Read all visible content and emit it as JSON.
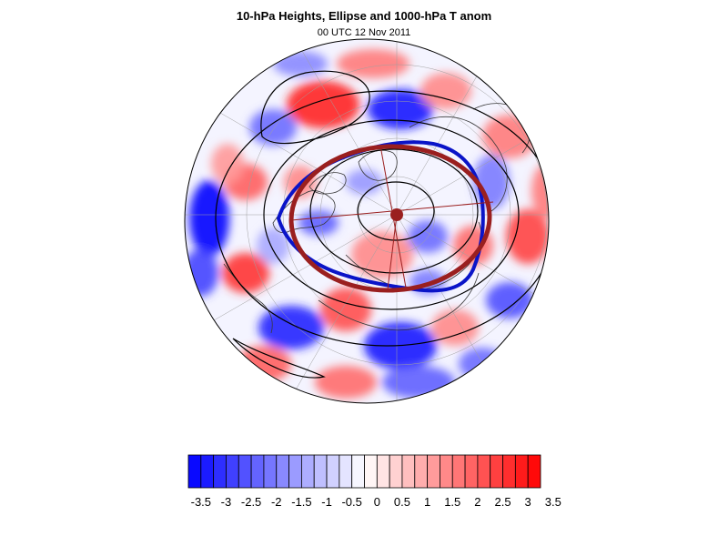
{
  "header": {
    "title": "10-hPa Heights, Ellipse and 1000-hPa T anom",
    "subtitle": "00 UTC 12 Nov 2011"
  },
  "colors": {
    "cold": "#0000ff",
    "warm": "#ff0000",
    "ellipse": "#9a1f1f",
    "polar_vortex_edge": "#0a14c8",
    "contour": "#000000",
    "coast": "#333333",
    "grid": "#9a9a9a"
  },
  "colorbar": {
    "labels": [
      "-3.5",
      "-3",
      "-2.5",
      "-2",
      "-1.5",
      "-1",
      "-0.5",
      "0",
      "0.5",
      "1",
      "1.5",
      "2",
      "2.5",
      "3",
      "3.5"
    ],
    "levels": [
      -3.5,
      -3.25,
      -3,
      -2.75,
      -2.5,
      -2.25,
      -2,
      -1.75,
      -1.5,
      -1.25,
      -1,
      -0.75,
      -0.5,
      -0.25,
      0,
      0.25,
      0.5,
      0.75,
      1,
      1.25,
      1.5,
      1.75,
      2,
      2.25,
      2.5,
      2.75,
      3,
      3.25,
      3.5
    ]
  },
  "map": {
    "projection": "orthographic-north-polar",
    "field": "1000-hPa temperature anomaly",
    "contours": "10-hPa geopotential height"
  }
}
